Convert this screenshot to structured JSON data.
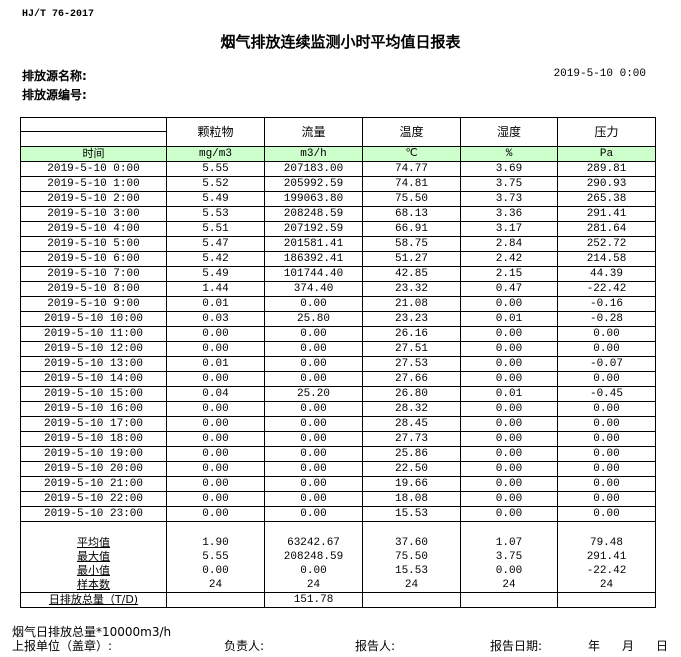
{
  "standard": "HJ/T  76-2017",
  "title": "烟气排放连续监测小时平均值日报表",
  "source_name_label": "排放源名称:",
  "source_id_label": "排放源编号:",
  "report_datetime": "2019-5-10 0:00",
  "table": {
    "time_header": "时间",
    "columns": [
      {
        "name": "颗粒物",
        "unit": "mg/m3"
      },
      {
        "name": "流量",
        "unit": "m3/h"
      },
      {
        "name": "温度",
        "unit": "℃"
      },
      {
        "name": "湿度",
        "unit": "%"
      },
      {
        "name": "压力",
        "unit": "Pa"
      }
    ],
    "rows": [
      [
        "2019-5-10 0:00",
        "5.55",
        "207183.00",
        "74.77",
        "3.69",
        "289.81"
      ],
      [
        "2019-5-10 1:00",
        "5.52",
        "205992.59",
        "74.81",
        "3.75",
        "290.93"
      ],
      [
        "2019-5-10 2:00",
        "5.49",
        "199063.80",
        "75.50",
        "3.73",
        "265.38"
      ],
      [
        "2019-5-10 3:00",
        "5.53",
        "208248.59",
        "68.13",
        "3.36",
        "291.41"
      ],
      [
        "2019-5-10 4:00",
        "5.51",
        "207192.59",
        "66.91",
        "3.17",
        "281.64"
      ],
      [
        "2019-5-10 5:00",
        "5.47",
        "201581.41",
        "58.75",
        "2.84",
        "252.72"
      ],
      [
        "2019-5-10 6:00",
        "5.42",
        "186392.41",
        "51.27",
        "2.42",
        "214.58"
      ],
      [
        "2019-5-10 7:00",
        "5.49",
        "101744.40",
        "42.85",
        "2.15",
        "44.39"
      ],
      [
        "2019-5-10 8:00",
        "1.44",
        "374.40",
        "23.32",
        "0.47",
        "-22.42"
      ],
      [
        "2019-5-10 9:00",
        "0.01",
        "0.00",
        "21.08",
        "0.00",
        "-0.16"
      ],
      [
        "2019-5-10 10:00",
        "0.03",
        "25.80",
        "23.23",
        "0.01",
        "-0.28"
      ],
      [
        "2019-5-10 11:00",
        "0.00",
        "0.00",
        "26.16",
        "0.00",
        "0.00"
      ],
      [
        "2019-5-10 12:00",
        "0.00",
        "0.00",
        "27.51",
        "0.00",
        "0.00"
      ],
      [
        "2019-5-10 13:00",
        "0.01",
        "0.00",
        "27.53",
        "0.00",
        "-0.07"
      ],
      [
        "2019-5-10 14:00",
        "0.00",
        "0.00",
        "27.66",
        "0.00",
        "0.00"
      ],
      [
        "2019-5-10 15:00",
        "0.04",
        "25.20",
        "26.80",
        "0.01",
        "-0.45"
      ],
      [
        "2019-5-10 16:00",
        "0.00",
        "0.00",
        "28.32",
        "0.00",
        "0.00"
      ],
      [
        "2019-5-10 17:00",
        "0.00",
        "0.00",
        "28.45",
        "0.00",
        "0.00"
      ],
      [
        "2019-5-10 18:00",
        "0.00",
        "0.00",
        "27.73",
        "0.00",
        "0.00"
      ],
      [
        "2019-5-10 19:00",
        "0.00",
        "0.00",
        "25.86",
        "0.00",
        "0.00"
      ],
      [
        "2019-5-10 20:00",
        "0.00",
        "0.00",
        "22.50",
        "0.00",
        "0.00"
      ],
      [
        "2019-5-10 21:00",
        "0.00",
        "0.00",
        "19.66",
        "0.00",
        "0.00"
      ],
      [
        "2019-5-10 22:00",
        "0.00",
        "0.00",
        "18.08",
        "0.00",
        "0.00"
      ],
      [
        "2019-5-10 23:00",
        "0.00",
        "0.00",
        "15.53",
        "0.00",
        "0.00"
      ]
    ],
    "stats": [
      [
        "平均值",
        "1.90",
        "63242.67",
        "37.60",
        "1.07",
        "79.48"
      ],
      [
        "最大值",
        "5.55",
        "208248.59",
        "75.50",
        "3.75",
        "291.41"
      ],
      [
        "最小值",
        "0.00",
        "0.00",
        "15.53",
        "0.00",
        "-22.42"
      ],
      [
        "样本数",
        "24",
        "24",
        "24",
        "24",
        "24"
      ]
    ],
    "daily_total": [
      "日排放总量（T/D)",
      "",
      "151.78",
      "",
      "",
      ""
    ]
  },
  "footer": {
    "note": "烟气日排放总量*10000m3/h",
    "unit_label": "上报单位（盖章）:",
    "responsible_label": "负责人:",
    "reporter_label": "报告人:",
    "date_label": "报告日期:",
    "year": "年",
    "month": "月",
    "day": "日"
  }
}
